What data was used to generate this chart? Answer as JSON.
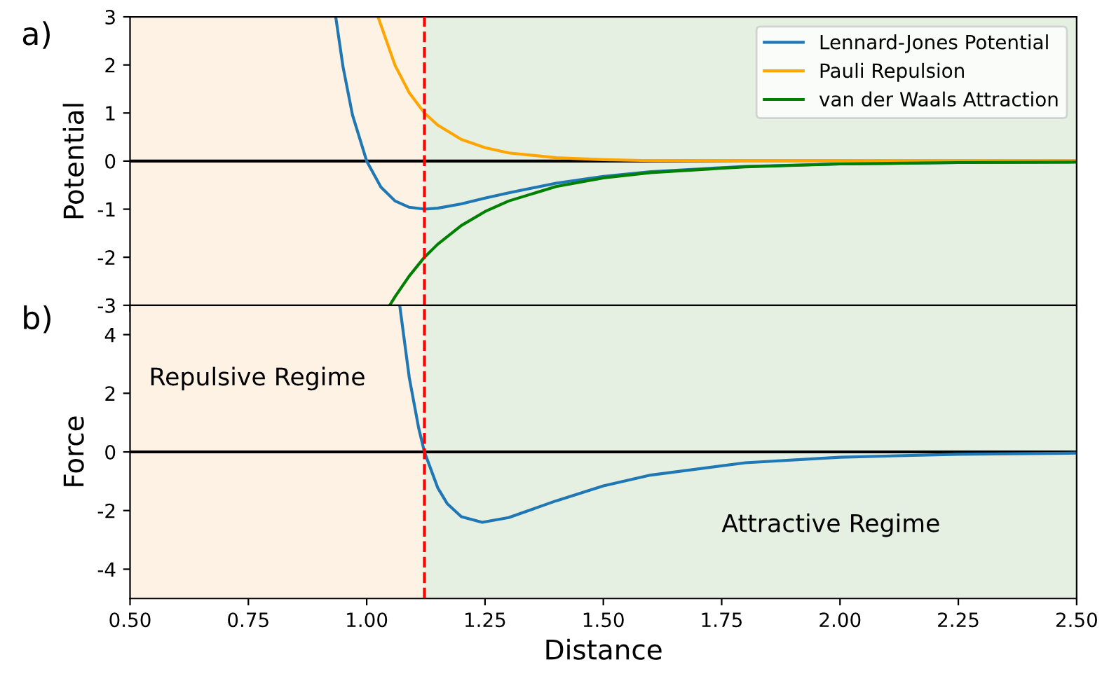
{
  "chart_data": [
    {
      "type": "line",
      "ylabel": "Potential",
      "annotations": [
        "a)"
      ],
      "xlim": [
        0.5,
        2.5
      ],
      "xticks": [
        0.5,
        0.75,
        1.0,
        1.25,
        1.5,
        1.75,
        2.0,
        2.25,
        2.5
      ],
      "ylim": [
        -3,
        3
      ],
      "yticks": [
        -3,
        -2,
        -1,
        0,
        1,
        2,
        3
      ],
      "tick_labels": "y",
      "legend": "top right",
      "grid": false,
      "series": [
        {
          "name": "Lennard-Jones Potential",
          "color": "#1f77b4",
          "x": [
            0.935,
            0.95,
            0.97,
            1.0,
            1.03,
            1.06,
            1.09,
            1.122,
            1.15,
            1.2,
            1.25,
            1.3,
            1.4,
            1.5,
            1.6,
            1.8,
            2.0,
            2.25,
            2.5
          ],
          "values": [
            2.97,
            1.96,
            0.96,
            0.0,
            -0.54,
            -0.83,
            -0.96,
            -1.0,
            -0.98,
            -0.89,
            -0.77,
            -0.66,
            -0.46,
            -0.32,
            -0.22,
            -0.11,
            -0.06,
            -0.03,
            -0.02
          ]
        },
        {
          "name": "Pauli Repulsion",
          "color": "#ffa500",
          "x": [
            1.025,
            1.06,
            1.09,
            1.122,
            1.15,
            1.2,
            1.25,
            1.3,
            1.4,
            1.5,
            1.6,
            1.8,
            2.0,
            2.5
          ],
          "values": [
            2.97,
            1.99,
            1.42,
            1.0,
            0.75,
            0.45,
            0.28,
            0.17,
            0.07,
            0.03,
            0.01,
            0.0,
            0.0,
            0.0
          ]
        },
        {
          "name": "van der Waals Attraction",
          "color": "#008000",
          "x": [
            1.05,
            1.06,
            1.09,
            1.122,
            1.15,
            1.2,
            1.25,
            1.3,
            1.4,
            1.5,
            1.6,
            1.8,
            2.0,
            2.25,
            2.5
          ],
          "values": [
            -2.98,
            -2.82,
            -2.39,
            -2.0,
            -1.73,
            -1.34,
            -1.05,
            -0.83,
            -0.53,
            -0.35,
            -0.24,
            -0.12,
            -0.06,
            -0.03,
            -0.02
          ]
        }
      ],
      "ref_lines": [
        {
          "axis": "x",
          "value": 1.122,
          "color": "#ff0000",
          "line_style": "dashed"
        },
        {
          "axis": "y",
          "value": 0,
          "color": "#000000",
          "line_style": "solid"
        }
      ],
      "bands": [
        {
          "axis": "x",
          "from": 0.5,
          "to": 1.122,
          "color": "#fdf2e3"
        },
        {
          "axis": "x",
          "from": 1.122,
          "to": 2.5,
          "color": "#e5f0e3"
        }
      ]
    },
    {
      "type": "line",
      "xlabel": "Distance",
      "ylabel": "Force",
      "annotations": [
        "b)"
      ],
      "xlim": [
        0.5,
        2.5
      ],
      "xticks": [
        {
          "value": 0.5,
          "label": "0.50"
        },
        0.75,
        {
          "value": 1.0,
          "label": "1.00"
        },
        1.25,
        {
          "value": 1.5,
          "label": "1.50"
        },
        1.75,
        {
          "value": 2.0,
          "label": "2.00"
        },
        2.25,
        {
          "value": 2.5,
          "label": "2.50"
        }
      ],
      "ylim": [
        -5,
        5
      ],
      "yticks": [
        -4,
        -2,
        0,
        2,
        4
      ],
      "grid": false,
      "series": [
        {
          "color": "#1f77b4",
          "x": [
            1.07,
            1.09,
            1.11,
            1.122,
            1.15,
            1.17,
            1.2,
            1.244,
            1.3,
            1.4,
            1.5,
            1.6,
            1.8,
            2.0,
            2.25,
            2.5
          ],
          "values": [
            4.97,
            2.53,
            0.8,
            0.0,
            -1.22,
            -1.76,
            -2.21,
            -2.4,
            -2.24,
            -1.67,
            -1.16,
            -0.79,
            -0.37,
            -0.18,
            -0.08,
            -0.04
          ]
        }
      ],
      "ref_lines": [
        {
          "axis": "x",
          "value": 1.122,
          "color": "#ff0000",
          "line_style": "dashed"
        },
        {
          "axis": "y",
          "value": 0,
          "color": "#000000",
          "line_style": "solid"
        }
      ],
      "bands": [
        {
          "axis": "x",
          "from": 0.5,
          "to": 1.122,
          "color": "#fdf2e3",
          "label": "Repulsive Regime"
        },
        {
          "axis": "x",
          "from": 1.122,
          "to": 2.5,
          "color": "#e5f0e3",
          "label": "Attractive Regime"
        }
      ]
    }
  ]
}
